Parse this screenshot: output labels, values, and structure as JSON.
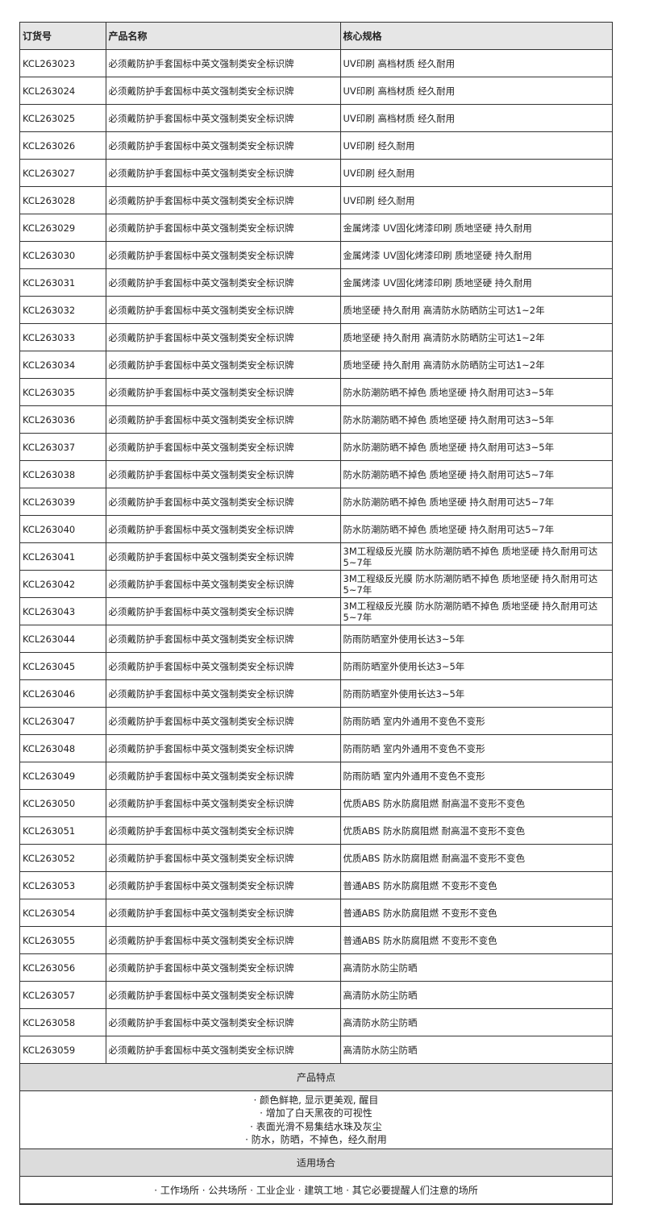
{
  "headers": {
    "code": "订货号",
    "name": "产品名称",
    "spec": "核心规格"
  },
  "rows": [
    {
      "code": "KCL263023",
      "name": "必须戴防护手套国标中英文强制类安全标识牌",
      "spec": "UV印刷 高档材质 经久耐用"
    },
    {
      "code": "KCL263024",
      "name": "必须戴防护手套国标中英文强制类安全标识牌",
      "spec": "UV印刷 高档材质 经久耐用"
    },
    {
      "code": "KCL263025",
      "name": "必须戴防护手套国标中英文强制类安全标识牌",
      "spec": "UV印刷 高档材质 经久耐用"
    },
    {
      "code": "KCL263026",
      "name": "必须戴防护手套国标中英文强制类安全标识牌",
      "spec": "UV印刷 经久耐用"
    },
    {
      "code": "KCL263027",
      "name": "必须戴防护手套国标中英文强制类安全标识牌",
      "spec": "UV印刷 经久耐用"
    },
    {
      "code": "KCL263028",
      "name": "必须戴防护手套国标中英文强制类安全标识牌",
      "spec": "UV印刷 经久耐用"
    },
    {
      "code": "KCL263029",
      "name": "必须戴防护手套国标中英文强制类安全标识牌",
      "spec": "金属烤漆 UV固化烤漆印刷 质地坚硬 持久耐用"
    },
    {
      "code": "KCL263030",
      "name": "必须戴防护手套国标中英文强制类安全标识牌",
      "spec": "金属烤漆 UV固化烤漆印刷 质地坚硬 持久耐用"
    },
    {
      "code": "KCL263031",
      "name": "必须戴防护手套国标中英文强制类安全标识牌",
      "spec": "金属烤漆 UV固化烤漆印刷 质地坚硬 持久耐用"
    },
    {
      "code": "KCL263032",
      "name": "必须戴防护手套国标中英文强制类安全标识牌",
      "spec": "质地坚硬 持久耐用 高清防水防晒防尘可达1~2年"
    },
    {
      "code": "KCL263033",
      "name": "必须戴防护手套国标中英文强制类安全标识牌",
      "spec": "质地坚硬 持久耐用 高清防水防晒防尘可达1~2年"
    },
    {
      "code": "KCL263034",
      "name": "必须戴防护手套国标中英文强制类安全标识牌",
      "spec": "质地坚硬 持久耐用 高清防水防晒防尘可达1~2年"
    },
    {
      "code": "KCL263035",
      "name": "必须戴防护手套国标中英文强制类安全标识牌",
      "spec": "防水防潮防晒不掉色 质地坚硬 持久耐用可达3~5年"
    },
    {
      "code": "KCL263036",
      "name": "必须戴防护手套国标中英文强制类安全标识牌",
      "spec": "防水防潮防晒不掉色 质地坚硬 持久耐用可达3~5年"
    },
    {
      "code": "KCL263037",
      "name": "必须戴防护手套国标中英文强制类安全标识牌",
      "spec": "防水防潮防晒不掉色 质地坚硬 持久耐用可达3~5年"
    },
    {
      "code": "KCL263038",
      "name": "必须戴防护手套国标中英文强制类安全标识牌",
      "spec": "防水防潮防晒不掉色 质地坚硬 持久耐用可达5~7年"
    },
    {
      "code": "KCL263039",
      "name": "必须戴防护手套国标中英文强制类安全标识牌",
      "spec": "防水防潮防晒不掉色 质地坚硬 持久耐用可达5~7年"
    },
    {
      "code": "KCL263040",
      "name": "必须戴防护手套国标中英文强制类安全标识牌",
      "spec": "防水防潮防晒不掉色 质地坚硬 持久耐用可达5~7年"
    },
    {
      "code": "KCL263041",
      "name": "必须戴防护手套国标中英文强制类安全标识牌",
      "spec": "3M工程级反光膜 防水防潮防晒不掉色 质地坚硬 持久耐用可达5~7年"
    },
    {
      "code": "KCL263042",
      "name": "必须戴防护手套国标中英文强制类安全标识牌",
      "spec": "3M工程级反光膜 防水防潮防晒不掉色 质地坚硬 持久耐用可达5~7年"
    },
    {
      "code": "KCL263043",
      "name": "必须戴防护手套国标中英文强制类安全标识牌",
      "spec": "3M工程级反光膜 防水防潮防晒不掉色 质地坚硬 持久耐用可达5~7年"
    },
    {
      "code": "KCL263044",
      "name": "必须戴防护手套国标中英文强制类安全标识牌",
      "spec": "防雨防晒室外使用长达3~5年"
    },
    {
      "code": "KCL263045",
      "name": "必须戴防护手套国标中英文强制类安全标识牌",
      "spec": "防雨防晒室外使用长达3~5年"
    },
    {
      "code": "KCL263046",
      "name": "必须戴防护手套国标中英文强制类安全标识牌",
      "spec": "防雨防晒室外使用长达3~5年"
    },
    {
      "code": "KCL263047",
      "name": "必须戴防护手套国标中英文强制类安全标识牌",
      "spec": "防雨防晒 室内外通用不变色不变形"
    },
    {
      "code": "KCL263048",
      "name": "必须戴防护手套国标中英文强制类安全标识牌",
      "spec": "防雨防晒 室内外通用不变色不变形"
    },
    {
      "code": "KCL263049",
      "name": "必须戴防护手套国标中英文强制类安全标识牌",
      "spec": "防雨防晒 室内外通用不变色不变形"
    },
    {
      "code": "KCL263050",
      "name": "必须戴防护手套国标中英文强制类安全标识牌",
      "spec": "优质ABS 防水防腐阻燃 耐高温不变形不变色"
    },
    {
      "code": "KCL263051",
      "name": "必须戴防护手套国标中英文强制类安全标识牌",
      "spec": "优质ABS 防水防腐阻燃 耐高温不变形不变色"
    },
    {
      "code": "KCL263052",
      "name": "必须戴防护手套国标中英文强制类安全标识牌",
      "spec": "优质ABS 防水防腐阻燃 耐高温不变形不变色"
    },
    {
      "code": "KCL263053",
      "name": "必须戴防护手套国标中英文强制类安全标识牌",
      "spec": "普通ABS 防水防腐阻燃 不变形不变色"
    },
    {
      "code": "KCL263054",
      "name": "必须戴防护手套国标中英文强制类安全标识牌",
      "spec": "普通ABS 防水防腐阻燃 不变形不变色"
    },
    {
      "code": "KCL263055",
      "name": "必须戴防护手套国标中英文强制类安全标识牌",
      "spec": "普通ABS 防水防腐阻燃 不变形不变色"
    },
    {
      "code": "KCL263056",
      "name": "必须戴防护手套国标中英文强制类安全标识牌",
      "spec": "高清防水防尘防晒"
    },
    {
      "code": "KCL263057",
      "name": "必须戴防护手套国标中英文强制类安全标识牌",
      "spec": "高清防水防尘防晒"
    },
    {
      "code": "KCL263058",
      "name": "必须戴防护手套国标中英文强制类安全标识牌",
      "spec": "高清防水防尘防晒"
    },
    {
      "code": "KCL263059",
      "name": "必须戴防护手套国标中英文强制类安全标识牌",
      "spec": "高清防水防尘防晒"
    }
  ],
  "features": {
    "title": "产品特点",
    "items": [
      "· 颜色鲜艳, 显示更美观, 醒目",
      "· 增加了白天黑夜的可视性",
      "· 表面光滑不易集结水珠及灰尘",
      "· 防水，防晒，不掉色，经久耐用"
    ]
  },
  "usage": {
    "title": "适用场合",
    "text": "· 工作场所 · 公共场所 · 工业企业 · 建筑工地 · 其它必要提醒人们注意的场所"
  },
  "colors": {
    "header_bg": "#e6e6e6",
    "section_bg": "#dcdcdc",
    "border": "#333333"
  }
}
